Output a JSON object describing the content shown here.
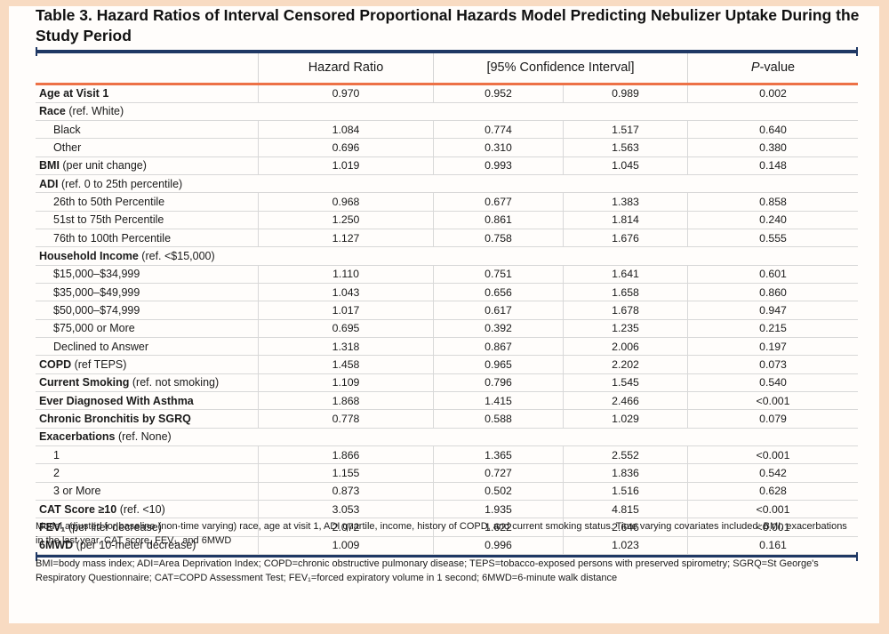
{
  "title": "Table 3. Hazard Ratios of Interval Censored Proportional Hazards Model Predicting Nebulizer Uptake During the Study Period",
  "header": {
    "hazard_ratio": "Hazard Ratio",
    "confidence_interval": "[95% Confidence Interval]",
    "pvalue_italic": "P",
    "pvalue_rest": "-value"
  },
  "table": {
    "rows": [
      {
        "type": "data",
        "bold": true,
        "indent": false,
        "label": "Age at Visit 1",
        "note": "",
        "values": [
          "0.970",
          "0.952",
          "0.989",
          "0.002"
        ]
      },
      {
        "type": "section",
        "label": "Race",
        "note": "(ref. White)"
      },
      {
        "type": "data",
        "bold": false,
        "indent": true,
        "label": "Black",
        "note": "",
        "values": [
          "1.084",
          "0.774",
          "1.517",
          "0.640"
        ]
      },
      {
        "type": "data",
        "bold": false,
        "indent": true,
        "label": "Other",
        "note": "",
        "values": [
          "0.696",
          "0.310",
          "1.563",
          "0.380"
        ]
      },
      {
        "type": "data",
        "bold": true,
        "indent": false,
        "label": "BMI",
        "note": "(per unit change)",
        "values": [
          "1.019",
          "0.993",
          "1.045",
          "0.148"
        ]
      },
      {
        "type": "section",
        "label": "ADI",
        "note": "(ref. 0 to 25th percentile)"
      },
      {
        "type": "data",
        "bold": false,
        "indent": true,
        "label": "26th to 50th Percentile",
        "note": "",
        "values": [
          "0.968",
          "0.677",
          "1.383",
          "0.858"
        ]
      },
      {
        "type": "data",
        "bold": false,
        "indent": true,
        "label": "51st to 75th Percentile",
        "note": "",
        "values": [
          "1.250",
          "0.861",
          "1.814",
          "0.240"
        ]
      },
      {
        "type": "data",
        "bold": false,
        "indent": true,
        "label": "76th to 100th Percentile",
        "note": "",
        "values": [
          "1.127",
          "0.758",
          "1.676",
          "0.555"
        ]
      },
      {
        "type": "section",
        "label": "Household Income",
        "note": "(ref. <$15,000)"
      },
      {
        "type": "data",
        "bold": false,
        "indent": true,
        "label": "$15,000–$34,999",
        "note": "",
        "values": [
          "1.110",
          "0.751",
          "1.641",
          "0.601"
        ]
      },
      {
        "type": "data",
        "bold": false,
        "indent": true,
        "label": "$35,000–$49,999",
        "note": "",
        "values": [
          "1.043",
          "0.656",
          "1.658",
          "0.860"
        ]
      },
      {
        "type": "data",
        "bold": false,
        "indent": true,
        "label": "$50,000–$74,999",
        "note": "",
        "values": [
          "1.017",
          "0.617",
          "1.678",
          "0.947"
        ]
      },
      {
        "type": "data",
        "bold": false,
        "indent": true,
        "label": "$75,000 or More",
        "note": "",
        "values": [
          "0.695",
          "0.392",
          "1.235",
          "0.215"
        ]
      },
      {
        "type": "data",
        "bold": false,
        "indent": true,
        "label": "Declined to Answer",
        "note": "",
        "values": [
          "1.318",
          "0.867",
          "2.006",
          "0.197"
        ]
      },
      {
        "type": "data",
        "bold": true,
        "indent": false,
        "label": "COPD",
        "note": "(ref TEPS)",
        "values": [
          "1.458",
          "0.965",
          "2.202",
          "0.073"
        ]
      },
      {
        "type": "data",
        "bold": true,
        "indent": false,
        "label": "Current Smoking",
        "note": "(ref. not smoking)",
        "values": [
          "1.109",
          "0.796",
          "1.545",
          "0.540"
        ]
      },
      {
        "type": "data",
        "bold": true,
        "indent": false,
        "label": "Ever Diagnosed With Asthma",
        "note": "",
        "values": [
          "1.868",
          "1.415",
          "2.466",
          "<0.001"
        ]
      },
      {
        "type": "data",
        "bold": true,
        "indent": false,
        "label": "Chronic Bronchitis by SGRQ",
        "note": "",
        "values": [
          "0.778",
          "0.588",
          "1.029",
          "0.079"
        ]
      },
      {
        "type": "section",
        "label": "Exacerbations",
        "note": "(ref. None)"
      },
      {
        "type": "data",
        "bold": false,
        "indent": true,
        "label": "1",
        "note": "",
        "values": [
          "1.866",
          "1.365",
          "2.552",
          "<0.001"
        ]
      },
      {
        "type": "data",
        "bold": false,
        "indent": true,
        "label": "2",
        "note": "",
        "values": [
          "1.155",
          "0.727",
          "1.836",
          "0.542"
        ]
      },
      {
        "type": "data",
        "bold": false,
        "indent": true,
        "label": "3 or More",
        "note": "",
        "values": [
          "0.873",
          "0.502",
          "1.516",
          "0.628"
        ]
      },
      {
        "type": "data",
        "bold": true,
        "indent": false,
        "label": "CAT Score ≥10",
        "note": "(ref. <10)",
        "values": [
          "3.053",
          "1.935",
          "4.815",
          "<0.001"
        ]
      },
      {
        "type": "data",
        "bold": true,
        "indent": false,
        "label": "FEV₁",
        "note": "(per liter decrease)",
        "values": [
          "2.072",
          "1.622",
          "2.646",
          "<0.001"
        ]
      },
      {
        "type": "data",
        "bold": true,
        "indent": false,
        "label": "6MWD",
        "note": "(per 10-meter decrease)",
        "values": [
          "1.009",
          "0.996",
          "1.023",
          "0.161"
        ]
      }
    ]
  },
  "footnotes": [
    "Model adjusted for baseline (non-time varying) race, age at visit 1, ADI quartile, income, history of COPD, and current smoking status. Time varying covariates included: BMI, exacerbations in the last year, CAT score, FEV₁, and 6MWD",
    "BMI=body mass index; ADI=Area Deprivation Index; COPD=chronic obstructive pulmonary disease; TEPS=tobacco-exposed persons with preserved spirometry; SGRQ=St George's Respiratory Questionnaire; CAT=COPD Assessment Test; FEV₁=forced expiratory volume in 1 second; 6MWD=6-minute walk distance"
  ],
  "colors": {
    "rule_navy": "#1F3864",
    "rule_orange": "#ED7146",
    "grid_gray": "#D8D8D8",
    "page_border": "#F8DBC2"
  }
}
